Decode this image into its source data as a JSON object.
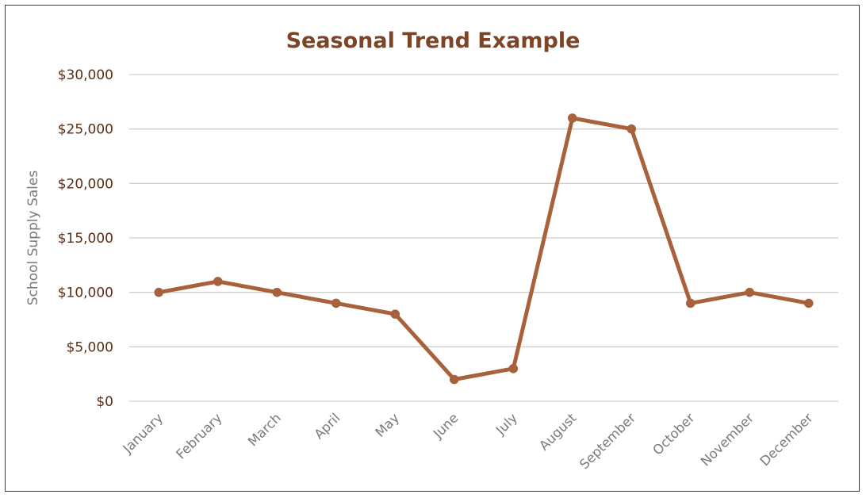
{
  "chart_data": {
    "type": "line",
    "title": "Seasonal Trend Example",
    "xlabel": "",
    "ylabel": "School Supply Sales",
    "categories": [
      "January",
      "February",
      "March",
      "April",
      "May",
      "June",
      "July",
      "August",
      "September",
      "October",
      "November",
      "December"
    ],
    "series": [
      {
        "values": [
          10000,
          11000,
          10000,
          9000,
          8000,
          2000,
          3000,
          26000,
          25000,
          9000,
          10000,
          9000
        ]
      }
    ],
    "ylim": [
      0,
      30000
    ],
    "yticks": [
      0,
      5000,
      10000,
      15000,
      20000,
      25000,
      30000
    ],
    "ytick_labels": [
      "$0",
      "$5,000",
      "$10,000",
      "$15,000",
      "$20,000",
      "$25,000",
      "$30,000"
    ],
    "grid": true,
    "legend": "none",
    "colors": {
      "line": "#A8613A",
      "title": "#7E4426",
      "ytick": "#5A2E16",
      "xtick": "#7A7A7A",
      "ylabel": "#7A7A7A",
      "grid": "#CFCFCF"
    }
  }
}
